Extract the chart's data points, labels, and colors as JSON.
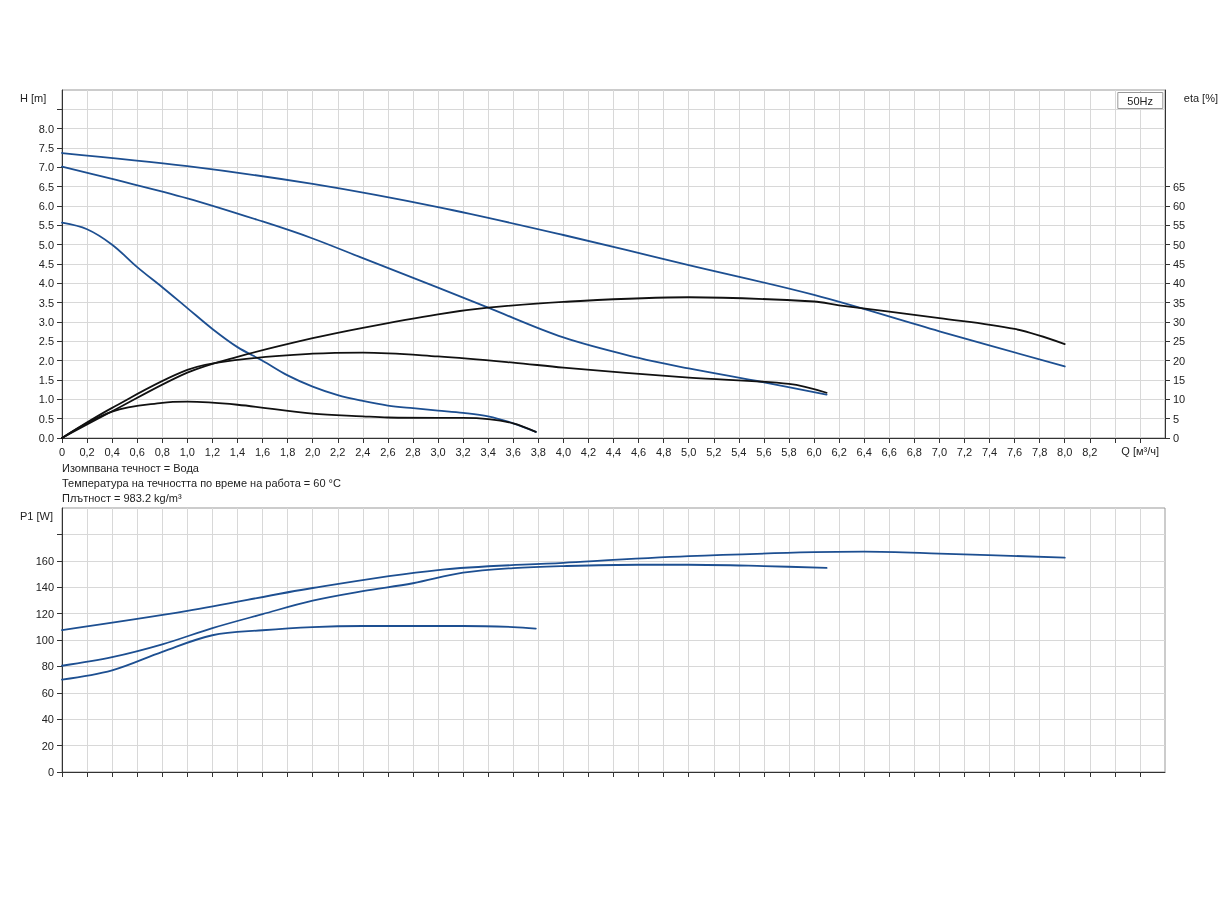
{
  "chart_data": [
    {
      "type": "line",
      "subtitle": "50Hz",
      "xlabel": "Q [м³/ч]",
      "ylabel": "H [m]",
      "y2label": "eta [%]",
      "annotations": [
        "Изомпвана течност = Вода",
        "Температура на течността по време на работа = 60 °C",
        "Плътност = 983.2 kg/m³"
      ],
      "xlim": [
        0,
        8.8
      ],
      "xticks": [
        0,
        {
          "value": 0.2,
          "label": "0,2"
        },
        {
          "value": 0.4,
          "label": "0,4"
        },
        {
          "value": 0.6,
          "label": "0,6"
        },
        {
          "value": 0.8,
          "label": "0,8"
        },
        {
          "value": 1,
          "label": "1,0"
        },
        {
          "value": 1.2,
          "label": "1,2"
        },
        {
          "value": 1.4,
          "label": "1,4"
        },
        {
          "value": 1.6,
          "label": "1,6"
        },
        {
          "value": 1.8,
          "label": "1,8"
        },
        {
          "value": 2,
          "label": "2,0"
        },
        {
          "value": 2.2,
          "label": "2,2"
        },
        {
          "value": 2.4,
          "label": "2,4"
        },
        {
          "value": 2.6,
          "label": "2,6"
        },
        {
          "value": 2.8,
          "label": "2,8"
        },
        {
          "value": 3,
          "label": "3,0"
        },
        {
          "value": 3.2,
          "label": "3,2"
        },
        {
          "value": 3.4,
          "label": "3,4"
        },
        {
          "value": 3.6,
          "label": "3,6"
        },
        {
          "value": 3.8,
          "label": "3,8"
        },
        {
          "value": 4,
          "label": "4,0"
        },
        {
          "value": 4.2,
          "label": "4,2"
        },
        {
          "value": 4.4,
          "label": "4,4"
        },
        {
          "value": 4.6,
          "label": "4,6"
        },
        {
          "value": 4.8,
          "label": "4,8"
        },
        {
          "value": 5,
          "label": "5,0"
        },
        {
          "value": 5.2,
          "label": "5,2"
        },
        {
          "value": 5.4,
          "label": "5,4"
        },
        {
          "value": 5.6,
          "label": "5,6"
        },
        {
          "value": 5.8,
          "label": "5,8"
        },
        {
          "value": 6,
          "label": "6,0"
        },
        {
          "value": 6.2,
          "label": "6,2"
        },
        {
          "value": 6.4,
          "label": "6,4"
        },
        {
          "value": 6.6,
          "label": "6,6"
        },
        {
          "value": 6.8,
          "label": "6,8"
        },
        {
          "value": 7,
          "label": "7,0"
        },
        {
          "value": 7.2,
          "label": "7,2"
        },
        {
          "value": 7.4,
          "label": "7,4"
        },
        {
          "value": 7.6,
          "label": "7,6"
        },
        {
          "value": 7.8,
          "label": "7,8"
        },
        {
          "value": 8,
          "label": "8,0"
        },
        {
          "value": 8.2,
          "label": "8,2"
        },
        {
          "value": 8.4,
          "label": null
        },
        {
          "value": 8.6,
          "label": null
        }
      ],
      "ylim": [
        0,
        9
      ],
      "yticks": [
        {
          "value": 0,
          "label": "0.0"
        },
        0.5,
        {
          "value": 1,
          "label": "1.0"
        },
        1.5,
        {
          "value": 2,
          "label": "2.0"
        },
        2.5,
        {
          "value": 3,
          "label": "3.0"
        },
        3.5,
        {
          "value": 4,
          "label": "4.0"
        },
        4.5,
        {
          "value": 5,
          "label": "5.0"
        },
        5.5,
        {
          "value": 6,
          "label": "6.0"
        },
        6.5,
        {
          "value": 7,
          "label": "7.0"
        },
        7.5,
        {
          "value": 8,
          "label": "8.0"
        },
        {
          "value": 8.5,
          "label": null
        }
      ],
      "y2lim": [
        0,
        90
      ],
      "y2ticks": [
        0,
        5,
        10,
        15,
        20,
        25,
        30,
        35,
        40,
        45,
        50,
        55,
        60,
        65
      ],
      "grid": true,
      "marker": "none",
      "line_style": "solid",
      "series": [
        {
          "color": "#1d4f91",
          "x": [
            0,
            1,
            2,
            3,
            4,
            5,
            6,
            7,
            8
          ],
          "values": [
            7.37,
            7.03,
            6.57,
            5.97,
            5.25,
            4.47,
            3.7,
            2.76,
            1.85
          ]
        },
        {
          "color": "#1d4f91",
          "x": [
            0,
            0.4,
            1,
            1.6,
            2,
            2.4,
            3,
            3.4,
            4,
            4.6,
            5,
            5.6,
            6.1
          ],
          "values": [
            7.02,
            6.7,
            6.2,
            5.6,
            5.16,
            4.65,
            3.89,
            3.37,
            2.6,
            2.07,
            1.8,
            1.44,
            1.12
          ]
        },
        {
          "color": "#1d4f91",
          "x": [
            0,
            0.2,
            0.4,
            0.6,
            0.8,
            1,
            1.2,
            1.4,
            1.6,
            1.8,
            2,
            2.2,
            2.4,
            2.6,
            2.8,
            3,
            3.2,
            3.4,
            3.6,
            3.78
          ],
          "values": [
            5.57,
            5.4,
            5.0,
            4.42,
            3.9,
            3.36,
            2.82,
            2.35,
            2.0,
            1.62,
            1.33,
            1.11,
            0.96,
            0.84,
            0.77,
            0.71,
            0.65,
            0.56,
            0.38,
            0.16
          ]
        },
        {
          "color": "#111111",
          "axis": "y2",
          "x": [
            0,
            0.4,
            1,
            1.4,
            2,
            2.4,
            3,
            3.4,
            4,
            5,
            6,
            6.2,
            7,
            7.6,
            8
          ],
          "values": [
            0,
            6.9,
            16.9,
            21,
            25.8,
            28.5,
            32,
            33.7,
            35.2,
            36.4,
            35.3,
            34.3,
            31,
            28.2,
            24.3
          ]
        },
        {
          "color": "#111111",
          "axis": "y2",
          "x": [
            0,
            0.4,
            1,
            1.4,
            2,
            2.4,
            3,
            3.6,
            4,
            5,
            5.8,
            6.1
          ],
          "values": [
            0,
            7.8,
            17.6,
            20.2,
            21.8,
            22.1,
            21.1,
            19.5,
            18.2,
            15.6,
            14,
            11.7
          ]
        },
        {
          "color": "#111111",
          "axis": "y2",
          "x": [
            0,
            0.4,
            0.8,
            1,
            1.4,
            2,
            2.4,
            2.6,
            3,
            3.2,
            3.4,
            3.6,
            3.78
          ],
          "values": [
            0,
            6.8,
            9.1,
            9.4,
            8.6,
            6.3,
            5.6,
            5.3,
            5.2,
            5.2,
            4.9,
            3.8,
            1.6
          ]
        }
      ]
    },
    {
      "type": "line",
      "ylabel": "P1 [W]",
      "tick_labels": "y",
      "xlim": [
        0,
        8.8
      ],
      "xticks": [
        0,
        0.2,
        0.4,
        0.6,
        0.8,
        1,
        1.2,
        1.4,
        1.6,
        1.8,
        2,
        2.2,
        2.4,
        2.6,
        2.8,
        3,
        3.2,
        3.4,
        3.6,
        3.8,
        4,
        4.2,
        4.4,
        4.6,
        4.8,
        5,
        5.2,
        5.4,
        5.6,
        5.8,
        6,
        6.2,
        6.4,
        6.6,
        6.8,
        7,
        7.2,
        7.4,
        7.6,
        7.8,
        8,
        8.2,
        8.4,
        8.6
      ],
      "ylim": [
        0,
        200
      ],
      "yticks": [
        0,
        20,
        40,
        60,
        80,
        100,
        120,
        140,
        160,
        {
          "value": 180,
          "label": null
        }
      ],
      "grid": true,
      "marker": "none",
      "line_style": "solid",
      "series": [
        {
          "color": "#1d4f91",
          "x": [
            0,
            1,
            2,
            3,
            4,
            5,
            6,
            6.4,
            7,
            8
          ],
          "values": [
            107.5,
            122,
            139.4,
            153,
            158.5,
            163.5,
            166.5,
            166.9,
            165.5,
            162.4
          ]
        },
        {
          "color": "#1d4f91",
          "x": [
            0,
            0.4,
            0.8,
            1.2,
            1.6,
            2,
            2.4,
            2.8,
            3.2,
            3.6,
            4,
            4.6,
            5,
            5.6,
            6.1
          ],
          "values": [
            80.5,
            87,
            96.7,
            109,
            119.6,
            129.8,
            137,
            143,
            151,
            154.5,
            156,
            157,
            157,
            156,
            154.6
          ]
        },
        {
          "color": "#1d4f91",
          "x": [
            0,
            0.4,
            0.8,
            1.2,
            1.6,
            2,
            2.4,
            2.8,
            3.2,
            3.6,
            3.78
          ],
          "values": [
            70,
            77,
            91,
            103.6,
            107.4,
            109.8,
            110.6,
            110.6,
            110.6,
            109.8,
            108.6
          ]
        }
      ]
    }
  ]
}
